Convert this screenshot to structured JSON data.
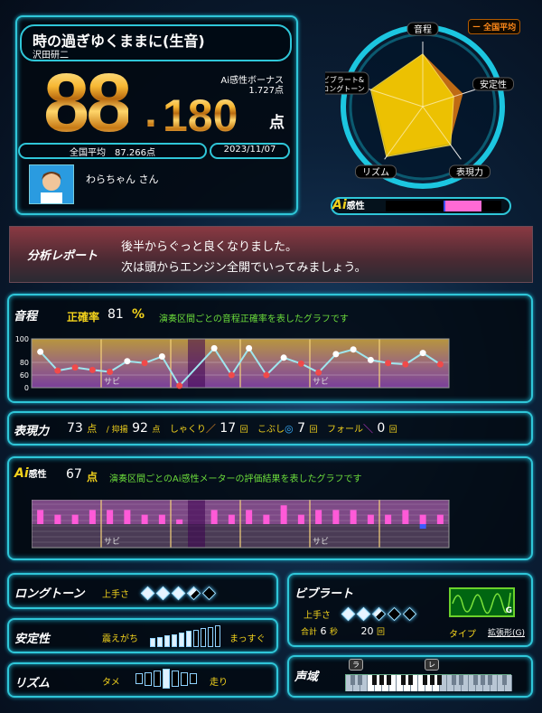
{
  "song": {
    "title": "時の過ぎゆくままに(生音)",
    "artist": "沢田研二"
  },
  "score": {
    "int": "88",
    "dot": ".",
    "dec": "180",
    "unit": "点",
    "bonus_label": "Ai感性ボーナス",
    "bonus_value": "1.727点",
    "national_avg": "全国平均　87.266点",
    "date": "2023/11/07"
  },
  "user": {
    "name": "わらちゃん さん",
    "avatar": "avatar-icon"
  },
  "radar": {
    "axes": [
      "音程",
      "安定性",
      "表現力",
      "リズム",
      "ビブラート&\nロングトーン"
    ],
    "values": [
      81,
      50,
      73,
      95,
      84
    ],
    "average": [
      81,
      65,
      70,
      92,
      82
    ],
    "legend": "ー 全国平均",
    "colors": {
      "user": "#f5d000",
      "average": "#e07a10"
    }
  },
  "ai_meter": {
    "label": "感性",
    "logo": "Ai",
    "range_start": 0.5,
    "range_end": 0.83
  },
  "report": {
    "label": "分析レポート",
    "lines": [
      "後半からぐっと良くなりました。",
      "次は頭からエンジン全開でいってみましょう。"
    ]
  },
  "pitch": {
    "label": "音程",
    "accuracy_label": "正確率",
    "accuracy": "81",
    "accuracy_unit": "%",
    "desc": "演奏区間ごとの音程正確率を表したグラフです",
    "chart_data": {
      "type": "line",
      "yticks": [
        "100",
        "80",
        "60",
        "0"
      ],
      "values": [
        89,
        67,
        72,
        68,
        65,
        81,
        79,
        85,
        9,
        null,
        92,
        60,
        92,
        60,
        84,
        78,
        64,
        87,
        91,
        82,
        79,
        77,
        88,
        77
      ],
      "sabi_label": "サビ"
    }
  },
  "expression": {
    "label": "表現力",
    "score": "73",
    "unit": "点",
    "yokuyo_label": "/ 抑揚",
    "yokuyo": "92",
    "yokuyo_unit": "点",
    "shakuri_label": "しゃくり",
    "shakuri": "17",
    "kobushi_label": "こぶし",
    "kobushi": "7",
    "fall_label": "フォール",
    "fall": "0",
    "count_unit": "回"
  },
  "ai": {
    "logo": "Ai",
    "label": "感性",
    "score": "67",
    "unit": "点",
    "desc": "演奏区間ごとのAi感性メーターの評価結果を表したグラフです",
    "chart_data": {
      "type": "bar",
      "values": [
        3,
        2,
        2,
        3,
        3,
        3,
        2,
        2,
        1,
        null,
        3,
        2,
        3,
        2,
        4,
        2,
        3,
        3,
        3,
        2,
        2,
        3,
        2,
        2
      ],
      "negative": [
        0,
        0,
        0,
        0,
        0,
        0,
        0,
        0,
        0,
        0,
        0,
        0,
        0,
        0,
        0,
        0,
        0,
        0,
        0,
        0,
        0,
        0,
        1,
        0
      ],
      "sabi_label": "サビ"
    }
  },
  "longtone": {
    "label": "ロングトーン",
    "skill_label": "上手さ",
    "level": 3.5,
    "max": 5
  },
  "stability": {
    "label": "安定性",
    "left": "震えがち",
    "right": "まっすぐ",
    "level": 6,
    "max": 10
  },
  "rhythm": {
    "label": "リズム",
    "left": "タメ",
    "right": "走り",
    "position": 3,
    "max": 7
  },
  "vibrato": {
    "label": "ビブラート",
    "skill_label": "上手さ",
    "level": 2.5,
    "max": 5,
    "total_label": "合計",
    "seconds": "6",
    "sec_unit": "秒",
    "count": "20",
    "count_unit": "回",
    "type_label": "タイプ",
    "type": "拡張形(G)",
    "type_badge": "G"
  },
  "range": {
    "label": "声域",
    "low": "ラ",
    "high": "レ"
  }
}
